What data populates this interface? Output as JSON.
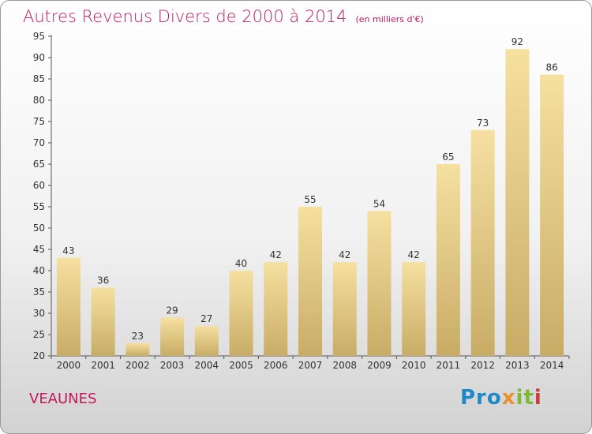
{
  "header": {
    "title": "Autres Revenus Divers de 2000 à 2014",
    "subtitle": "(en milliers d'€)"
  },
  "footer": {
    "commune": "VEAUNES",
    "logo_text": "Proxiti",
    "logo_parts": [
      "Pro",
      "x",
      "it",
      "i"
    ]
  },
  "colors": {
    "title": "#c2185b",
    "bar_light": "#f6e0a0",
    "bar_dark": "#c8ac66",
    "axis": "#555555"
  },
  "chart_data": {
    "type": "bar",
    "title": "Autres Revenus Divers de 2000 à 2014",
    "subtitle": "(en milliers d'€)",
    "xlabel": "",
    "ylabel": "",
    "categories": [
      "2000",
      "2001",
      "2002",
      "2003",
      "2004",
      "2005",
      "2006",
      "2007",
      "2008",
      "2009",
      "2010",
      "2011",
      "2012",
      "2013",
      "2014"
    ],
    "values": [
      43,
      36,
      23,
      29,
      27,
      40,
      42,
      55,
      42,
      54,
      42,
      65,
      73,
      92,
      86
    ],
    "ylim": [
      20,
      95
    ],
    "yticks": [
      20,
      25,
      30,
      35,
      40,
      45,
      50,
      55,
      60,
      65,
      70,
      75,
      80,
      85,
      90,
      95
    ],
    "grid": false,
    "data_labels": true
  }
}
